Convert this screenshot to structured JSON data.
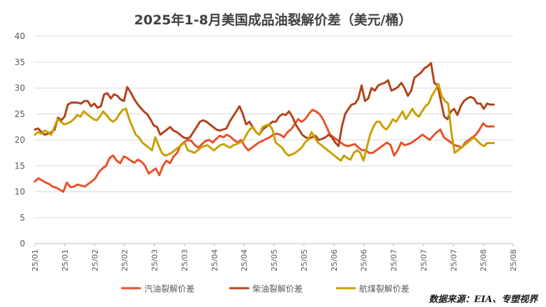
{
  "title": "2025年1-8月美国成品油裂解价差（美元/桶）",
  "source": "数据来源：EIA、专塑视界",
  "chart_data": {
    "type": "line",
    "ylim": [
      0,
      40
    ],
    "yticks": [
      0,
      5,
      10,
      15,
      20,
      25,
      30,
      35,
      40
    ],
    "grid": true,
    "legend_position": "bottom",
    "x_labels": [
      "25/01",
      "25/01",
      "25/02",
      "25/02",
      "25/03",
      "25/03",
      "25/04",
      "25/04",
      "25/05",
      "25/05",
      "25/06",
      "25/06",
      "25/07",
      "25/07",
      "25/07",
      "25/08",
      "25/08"
    ],
    "series": [
      {
        "name": "汽油裂解价差",
        "color": "#E8522A",
        "values": [
          12.0,
          12.6,
          12.2,
          11.8,
          11.5,
          11.0,
          10.8,
          10.4,
          10.0,
          11.8,
          10.9,
          11.0,
          11.4,
          11.2,
          11.0,
          11.5,
          12.0,
          12.6,
          13.8,
          14.5,
          15.0,
          16.5,
          17.0,
          16.0,
          15.5,
          16.8,
          16.5,
          16.0,
          15.6,
          16.2,
          15.8,
          15.0,
          13.5,
          14.0,
          14.5,
          13.2,
          15.0,
          16.0,
          15.5,
          16.8,
          17.5,
          19.0,
          19.6,
          20.0,
          19.8,
          19.0,
          18.5,
          19.2,
          19.8,
          20.0,
          19.5,
          20.2,
          20.8,
          20.5,
          21.0,
          20.6,
          20.0,
          19.5,
          20.0,
          18.8,
          18.0,
          18.5,
          19.0,
          19.5,
          19.8,
          20.2,
          20.5,
          21.0,
          21.2,
          21.0,
          20.5,
          21.5,
          22.0,
          23.0,
          24.0,
          23.5,
          24.0,
          25.0,
          25.8,
          25.5,
          25.0,
          24.0,
          22.5,
          21.0,
          20.5,
          20.0,
          19.5,
          19.0,
          18.8,
          19.0,
          19.2,
          18.5,
          18.0,
          18.0,
          17.5,
          17.5,
          18.0,
          18.5,
          19.0,
          19.5,
          19.0,
          17.0,
          18.0,
          19.5,
          19.0,
          19.2,
          19.5,
          20.0,
          20.5,
          21.0,
          20.5,
          20.0,
          20.8,
          21.5,
          22.0,
          20.5,
          20.0,
          19.5,
          19.0,
          18.8,
          18.5,
          19.5,
          20.0,
          20.5,
          21.0,
          22.0,
          23.2,
          22.6,
          22.6,
          22.6
        ]
      },
      {
        "name": "柴油裂解价差",
        "color": "#B0441C",
        "values": [
          22.0,
          22.2,
          21.5,
          21.0,
          21.2,
          21.5,
          22.0,
          24.3,
          23.8,
          24.5,
          26.8,
          27.2,
          27.2,
          27.2,
          27.0,
          27.5,
          27.5,
          26.5,
          27.0,
          26.2,
          26.5,
          28.8,
          29.0,
          28.0,
          28.8,
          28.5,
          27.8,
          27.5,
          30.2,
          29.2,
          28.0,
          27.0,
          26.2,
          25.5,
          25.0,
          24.0,
          22.8,
          22.5,
          21.0,
          21.5,
          22.0,
          22.5,
          21.8,
          21.5,
          21.0,
          20.5,
          20.3,
          20.5,
          21.5,
          22.5,
          23.5,
          23.8,
          23.5,
          23.0,
          22.5,
          22.0,
          21.8,
          22.0,
          22.2,
          23.5,
          24.5,
          25.5,
          26.5,
          25.0,
          23.0,
          23.5,
          22.5,
          21.5,
          21.0,
          22.0,
          22.5,
          23.0,
          23.5,
          23.5,
          24.5,
          25.0,
          24.8,
          25.5,
          24.5,
          23.0,
          22.0,
          21.0,
          20.5,
          20.3,
          20.5,
          20.8,
          20.0,
          20.2,
          20.5,
          21.0,
          20.5,
          19.5,
          18.8,
          22.5,
          25.0,
          26.0,
          26.8,
          27.0,
          28.0,
          30.5,
          27.5,
          28.0,
          30.0,
          29.5,
          30.5,
          30.8,
          31.0,
          31.5,
          29.5,
          29.8,
          30.2,
          31.0,
          30.0,
          28.5,
          29.5,
          32.0,
          32.5,
          33.0,
          33.8,
          34.2,
          34.8,
          31.0,
          30.5,
          27.5,
          24.5,
          24.0,
          25.5,
          26.0,
          24.8,
          26.5,
          27.5,
          28.0,
          28.3,
          28.0,
          27.0,
          27.0,
          26.0,
          27.0,
          26.8,
          26.8
        ]
      },
      {
        "name": "航煤裂解价差",
        "color": "#C9A000",
        "values": [
          21.0,
          21.5,
          21.2,
          21.8,
          21.5,
          21.0,
          22.5,
          24.0,
          23.5,
          23.0,
          23.2,
          23.5,
          24.0,
          24.8,
          24.5,
          25.5,
          25.0,
          24.5,
          24.0,
          23.8,
          24.5,
          25.5,
          24.8,
          24.0,
          23.5,
          24.0,
          25.0,
          25.8,
          26.0,
          24.0,
          22.5,
          21.0,
          20.5,
          19.5,
          19.0,
          18.5,
          18.0,
          20.5,
          19.0,
          17.5,
          17.0,
          17.2,
          17.5,
          18.0,
          18.5,
          19.0,
          19.5,
          18.0,
          17.8,
          17.5,
          18.0,
          18.5,
          18.8,
          19.0,
          18.5,
          18.0,
          18.5,
          19.0,
          19.2,
          18.8,
          18.5,
          19.0,
          19.2,
          19.5,
          19.8,
          21.0,
          22.0,
          22.5,
          21.5,
          21.0,
          22.5,
          22.8,
          23.0,
          22.0,
          19.5,
          19.0,
          18.5,
          17.5,
          17.0,
          17.2,
          17.5,
          18.0,
          18.5,
          19.5,
          20.0,
          21.5,
          20.5,
          19.5,
          19.0,
          18.5,
          18.0,
          17.5,
          17.0,
          16.5,
          16.0,
          17.0,
          16.5,
          16.2,
          17.5,
          18.0,
          17.5,
          16.0,
          18.5,
          21.0,
          22.5,
          23.5,
          23.5,
          22.5,
          22.0,
          22.8,
          24.0,
          23.5,
          24.5,
          25.5,
          24.0,
          25.0,
          26.0,
          25.0,
          24.5,
          25.5,
          26.5,
          27.0,
          28.5,
          29.5,
          30.8,
          28.5,
          27.5,
          27.0,
          21.5,
          17.5,
          18.0,
          18.5,
          19.0,
          19.5,
          20.0,
          20.5,
          19.8,
          19.2,
          18.8,
          19.4,
          19.4,
          19.4
        ]
      }
    ]
  }
}
